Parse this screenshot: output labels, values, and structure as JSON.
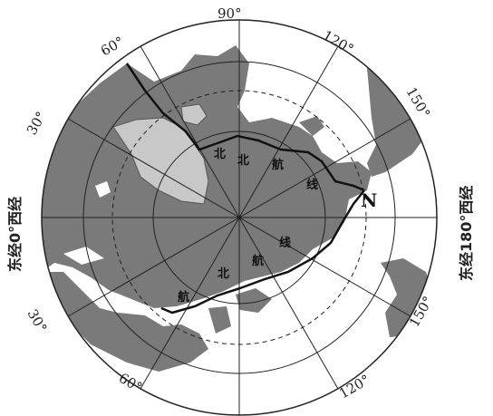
{
  "map": {
    "longitude_labels": {
      "top": "90°",
      "upper_left": "60°",
      "left_upper": "30°",
      "left_lower": "30°",
      "lower_left": "60°",
      "upper_right": "120°",
      "right_upper": "150°",
      "right_lower": "150°",
      "lower_right": "120°",
      "right": "180°"
    },
    "side_labels": {
      "left": "东经0°西经",
      "right": "东经180°西经"
    },
    "routes": {
      "northern": [
        "北",
        "北",
        "航",
        "线"
      ],
      "southern": [
        "航",
        "北",
        "航",
        "线"
      ]
    },
    "point_label": "N",
    "colors": {
      "land": "#7a7a7a",
      "ice": "#c8c8c8",
      "ocean": "#ffffff",
      "lines": "#222222"
    }
  }
}
